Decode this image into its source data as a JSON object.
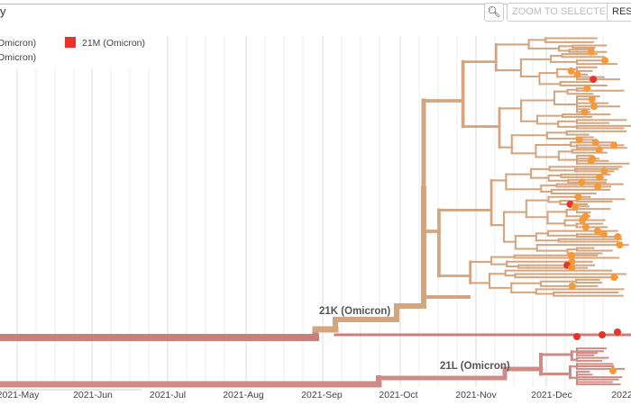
{
  "header": {
    "title": "y"
  },
  "toolbar": {
    "zoom_icon": "zoom-out-icon",
    "zoom_to_selected": "ZOOM TO SELECTED",
    "reset": "RESE"
  },
  "legend": {
    "items": [
      {
        "label": "Omicron)",
        "color": "#d4a57e"
      },
      {
        "label": "21M (Omicron)",
        "color": "#e8322a"
      },
      {
        "label": "Omicron)",
        "color": "#d08c84"
      }
    ]
  },
  "clade_labels": {
    "k": "21K (Omicron)",
    "l": "21L (Omicron)"
  },
  "axis": {
    "ticks": [
      "2021-May",
      "2021-Jun",
      "2021-Jul",
      "2021-Aug",
      "2021-Sep",
      "2021-Oct",
      "2021-Nov",
      "2021-Dec",
      "2022"
    ]
  },
  "colors": {
    "trunk": "#c97f7a",
    "clade_21k": "#d4a57e",
    "clade_21l": "#d08c84",
    "tip_orange": "#f59a3a",
    "tip_red": "#e8322a"
  }
}
